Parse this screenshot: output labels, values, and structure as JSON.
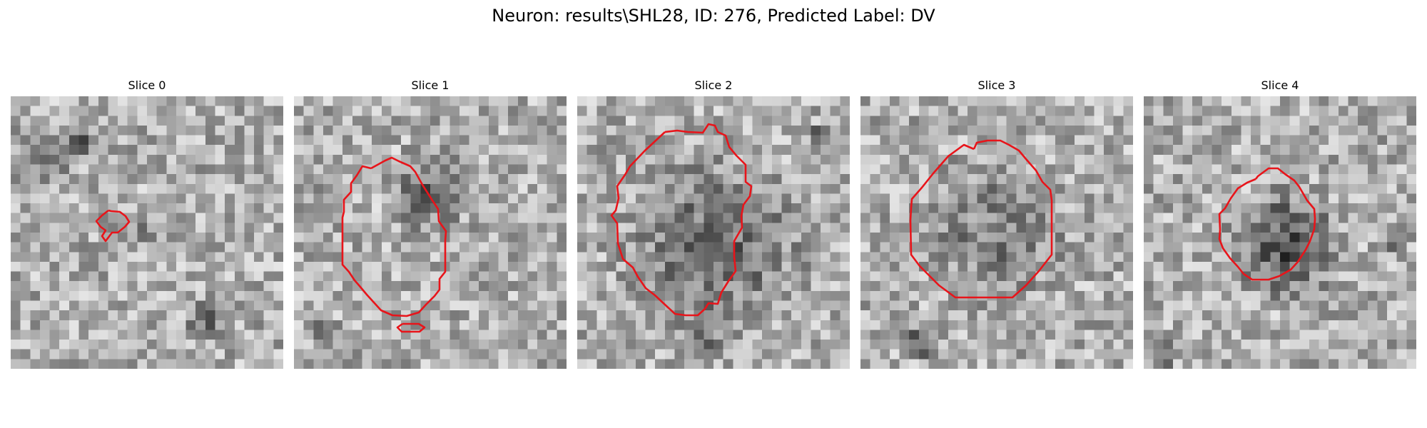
{
  "figure": {
    "title": "Neuron: results\\SHL28, ID: 276, Predicted Label: DV"
  },
  "colors": {
    "contour": "#e8141a",
    "colormap": "gray"
  },
  "panels": [
    {
      "title": "Slice 0",
      "seed": 11
    },
    {
      "title": "Slice 1",
      "seed": 23
    },
    {
      "title": "Slice 2",
      "seed": 37
    },
    {
      "title": "Slice 3",
      "seed": 41
    },
    {
      "title": "Slice 4",
      "seed": 59
    }
  ]
}
